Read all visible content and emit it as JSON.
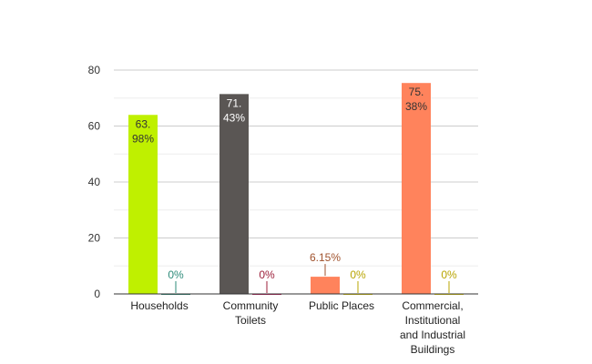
{
  "chart_data": {
    "type": "bar",
    "title": "",
    "xlabel": "",
    "ylabel": "",
    "ylim": [
      0,
      80
    ],
    "yticks": [
      0,
      20,
      40,
      60,
      80
    ],
    "grid": true,
    "categories": [
      [
        "Households"
      ],
      [
        "Community",
        "Toilets"
      ],
      [
        "Public Places"
      ],
      [
        "Commercial,",
        "Institutional",
        "and Industrial",
        "Buildings"
      ]
    ],
    "series": [
      {
        "values": [
          63.98,
          71.43,
          6.15,
          75.38
        ],
        "labels": [
          [
            "63.",
            "98%"
          ],
          [
            "71.",
            "43%"
          ],
          [
            "6.15%"
          ],
          [
            "75.",
            "38%"
          ]
        ],
        "colors": [
          "#bff000",
          "#5a5654",
          "#ff835c",
          "#ff835c"
        ],
        "label_colors": [
          "#333333",
          "#ffffff",
          "#a0522d",
          "#333333"
        ]
      },
      {
        "values": [
          0,
          0,
          0,
          0
        ],
        "labels": [
          [
            "0%"
          ],
          [
            "0%"
          ],
          [
            "0%"
          ],
          [
            "0%"
          ]
        ],
        "colors": [
          "#2e8b7a",
          "#c2185b",
          "#e6d200",
          "#e6d200"
        ],
        "label_colors": [
          "#2e8b7a",
          "#9c1f3a",
          "#b8a400",
          "#b8a400"
        ]
      }
    ]
  }
}
